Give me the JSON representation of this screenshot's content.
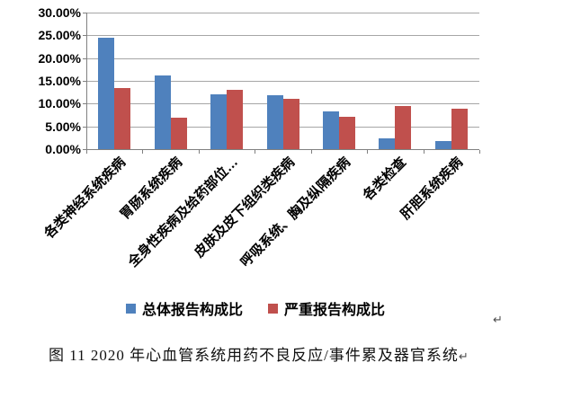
{
  "chart_data": {
    "type": "bar",
    "title": "",
    "xlabel": "",
    "ylabel": "",
    "categories": [
      "各类神经系统疾病",
      "胃肠系统疾病",
      "全身性疾病及给药部位…",
      "皮肤及皮下组织类疾病",
      "呼吸系统、胸及纵隔疾病",
      "各类检查",
      "肝胆系统疾病"
    ],
    "series": [
      {
        "name": "总体报告构成比",
        "color": "#4f81bd",
        "values": [
          24.4,
          16.2,
          12.1,
          11.9,
          8.3,
          2.4,
          1.7
        ]
      },
      {
        "name": "严重报告构成比",
        "color": "#c0504d",
        "values": [
          13.4,
          7.0,
          13.0,
          11.1,
          7.1,
          9.5,
          8.9
        ]
      }
    ],
    "ylim": [
      0,
      30
    ],
    "yticks": [
      {
        "value": 30,
        "label": "30.00%"
      },
      {
        "value": 25,
        "label": "25.00%"
      },
      {
        "value": 20,
        "label": "20.00%"
      },
      {
        "value": 15,
        "label": "15.00%"
      },
      {
        "value": 10,
        "label": "10.00%"
      },
      {
        "value": 5,
        "label": "5.00%"
      },
      {
        "value": 0,
        "label": "0.00%"
      }
    ],
    "grid": true,
    "legend_position": "bottom"
  },
  "marks": {
    "after_chart": "↵",
    "after_caption": "↵"
  },
  "caption": {
    "text": "图 11  2020 年心血管系统用药不良反应/事件累及器官系统"
  }
}
